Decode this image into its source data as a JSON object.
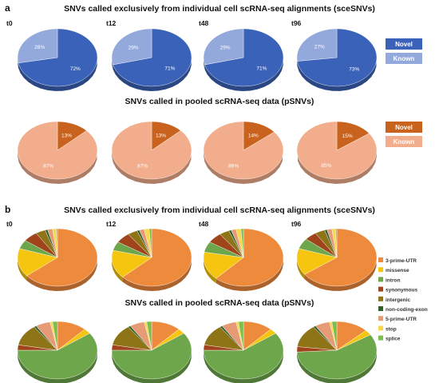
{
  "panels": {
    "a_label": "a",
    "b_label": "b"
  },
  "titles": {
    "a_top": "SNVs called exclusively from individual cell scRNA-seq alignments (sceSNVs)",
    "a_bottom": "SNVs called in pooled scRNA-seq data (pSNVs)",
    "b_top": "SNVs called exclusively from individual cell scRNA-seq alignments (sceSNVs)",
    "b_bottom": "SNVs called in pooled scRNA-seq data (pSNVs)"
  },
  "timepoints": [
    "t0",
    "t12",
    "t48",
    "t96"
  ],
  "colors": {
    "sce_novel": "#3a62b8",
    "sce_novel_dark": "#243f80",
    "sce_known": "#93a9dc",
    "p_novel": "#c8621c",
    "p_known": "#f2ae8c",
    "p_known_dark": "#d5856a"
  },
  "legend_a_top": [
    "Novel",
    "Known"
  ],
  "legend_a_bottom": [
    "Novel",
    "Known"
  ],
  "legend_b": [
    {
      "name": "3-prime-UTR",
      "color": "#ee8a3c"
    },
    {
      "name": "missense",
      "color": "#f5c510"
    },
    {
      "name": "intron",
      "color": "#6ea64b"
    },
    {
      "name": "synonymous",
      "color": "#a0451b"
    },
    {
      "name": "intergenic",
      "color": "#8f7417"
    },
    {
      "name": "non-coding-exon",
      "color": "#2f5e2c"
    },
    {
      "name": "5-prime-UTR",
      "color": "#e79a76"
    },
    {
      "name": "stop",
      "color": "#f6d84a"
    },
    {
      "name": "splice",
      "color": "#7cbd4d"
    }
  ],
  "chart_data": [
    {
      "type": "pie",
      "title": "SNVs called exclusively from individual cell scRNA-seq alignments (sceSNVs)",
      "categories": [
        "Novel",
        "Known"
      ],
      "series": [
        {
          "name": "t0",
          "values": [
            72,
            28
          ],
          "labels": [
            "72%",
            "28%"
          ]
        },
        {
          "name": "t12",
          "values": [
            71,
            29
          ],
          "labels": [
            "71%",
            "29%"
          ]
        },
        {
          "name": "t48",
          "values": [
            71,
            29
          ],
          "labels": [
            "71%",
            "29%"
          ]
        },
        {
          "name": "t96",
          "values": [
            73,
            27
          ],
          "labels": [
            "73%",
            "27%"
          ]
        }
      ]
    },
    {
      "type": "pie",
      "title": "SNVs called in pooled scRNA-seq data (pSNVs)",
      "categories": [
        "Novel",
        "Known"
      ],
      "series": [
        {
          "name": "t0",
          "values": [
            13,
            87
          ],
          "labels": [
            "13%",
            "87%"
          ]
        },
        {
          "name": "t12",
          "values": [
            13,
            87
          ],
          "labels": [
            "13%",
            "87%"
          ]
        },
        {
          "name": "t48",
          "values": [
            14,
            86
          ],
          "labels": [
            "14%",
            "86%"
          ]
        },
        {
          "name": "t96",
          "values": [
            15,
            85
          ],
          "labels": [
            "15%",
            "85%"
          ]
        }
      ]
    },
    {
      "type": "pie",
      "title": "SNVs called exclusively from individual cell scRNA-seq alignments (sceSNVs)",
      "categories": [
        "3-prime-UTR",
        "missense",
        "intron",
        "synonymous",
        "intergenic",
        "non-coding-exon",
        "5-prime-UTR",
        "stop",
        "splice"
      ],
      "series": [
        {
          "name": "t0",
          "values": [
            64,
            16,
            5,
            6,
            4,
            1,
            2,
            1.5,
            0.5
          ]
        },
        {
          "name": "t12",
          "values": [
            63,
            16,
            5,
            6,
            4,
            1,
            2,
            2,
            1
          ]
        },
        {
          "name": "t48",
          "values": [
            62,
            16,
            6,
            6,
            4,
            1,
            2,
            2,
            1
          ]
        },
        {
          "name": "t96",
          "values": [
            65,
            15,
            6,
            5,
            4,
            1,
            2,
            1.5,
            0.5
          ]
        }
      ]
    },
    {
      "type": "pie",
      "title": "SNVs called in pooled scRNA-seq data (pSNVs)",
      "categories": [
        "3-prime-UTR",
        "missense",
        "intron",
        "synonymous",
        "intergenic",
        "non-coding-exon",
        "5-prime-UTR",
        "stop",
        "splice"
      ],
      "series": [
        {
          "name": "t0",
          "values": [
            12,
            3,
            60,
            3,
            12,
            1,
            6,
            1,
            2
          ]
        },
        {
          "name": "t12",
          "values": [
            12,
            3,
            60,
            3,
            12,
            1,
            6,
            1,
            2
          ]
        },
        {
          "name": "t48",
          "values": [
            12,
            3,
            60,
            3,
            12,
            1,
            6,
            1,
            2
          ]
        },
        {
          "name": "t96",
          "values": [
            13,
            3,
            58,
            3,
            13,
            1,
            6,
            1,
            2
          ]
        }
      ]
    }
  ]
}
